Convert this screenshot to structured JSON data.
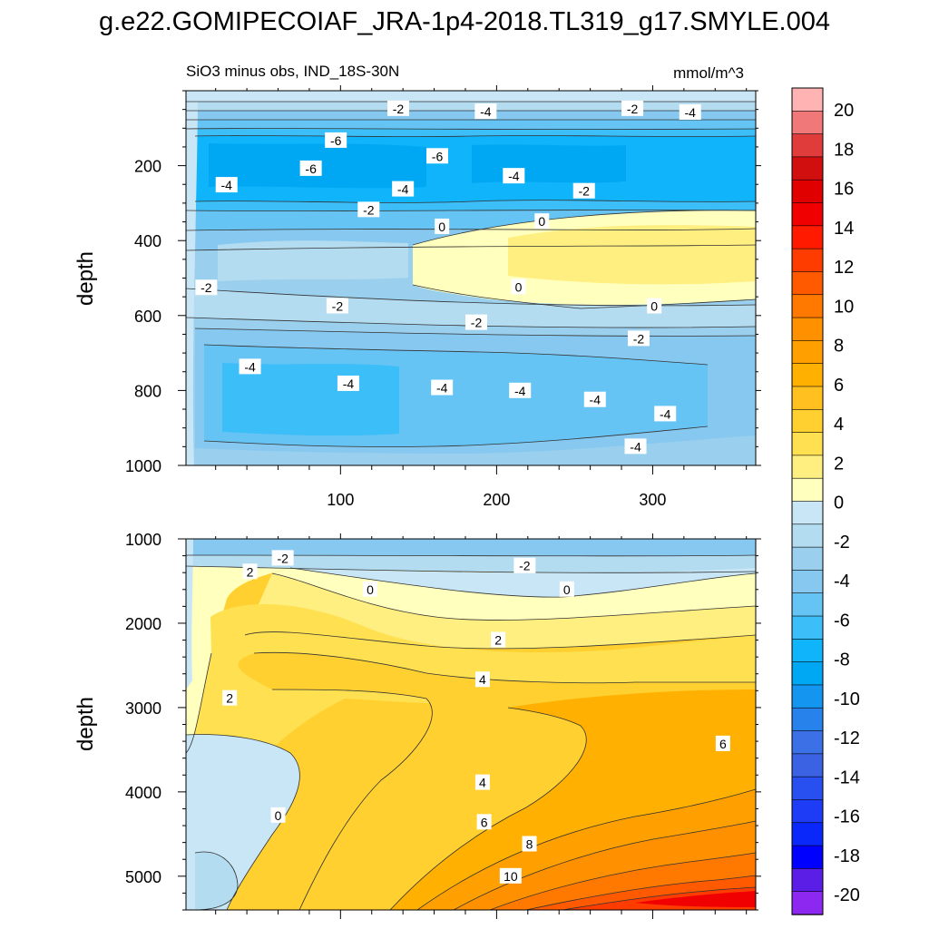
{
  "figure_title": "g.e22.GOMIPECOIAF_JRA-1p4-2018.TL319_g17.SMYLE.004",
  "chart_data": [
    {
      "type": "heatmap",
      "subtype": "filled-contour",
      "title": "SiO3 minus obs, IND_18S-30N",
      "units_label": "mmol/m^3",
      "ylabel": "depth",
      "xlabel": "",
      "xlim": [
        1,
        366
      ],
      "ylim": [
        1000,
        0
      ],
      "xticks": [
        100,
        200,
        300
      ],
      "yticks": [
        200,
        400,
        600,
        800,
        1000
      ],
      "contour_labels": [
        {
          "text": "-2",
          "x": 137,
          "y": 48
        },
        {
          "text": "-4",
          "x": 193,
          "y": 56
        },
        {
          "text": "-2",
          "x": 287,
          "y": 48
        },
        {
          "text": "-4",
          "x": 324,
          "y": 58
        },
        {
          "text": "-6",
          "x": 97,
          "y": 133
        },
        {
          "text": "-6",
          "x": 162,
          "y": 175
        },
        {
          "text": "-6",
          "x": 81,
          "y": 208
        },
        {
          "text": "-4",
          "x": 27,
          "y": 252
        },
        {
          "text": "-4",
          "x": 140,
          "y": 263
        },
        {
          "text": "-4",
          "x": 211,
          "y": 228
        },
        {
          "text": "-2",
          "x": 256,
          "y": 268
        },
        {
          "text": "-2",
          "x": 118,
          "y": 318
        },
        {
          "text": "0",
          "x": 165,
          "y": 363
        },
        {
          "text": "0",
          "x": 229,
          "y": 349
        },
        {
          "text": "-2",
          "x": 14,
          "y": 526
        },
        {
          "text": "0",
          "x": 214,
          "y": 524
        },
        {
          "text": "-2",
          "x": 98,
          "y": 575
        },
        {
          "text": "-2",
          "x": 187,
          "y": 619
        },
        {
          "text": "0",
          "x": 301,
          "y": 575
        },
        {
          "text": "-2",
          "x": 291,
          "y": 662
        },
        {
          "text": "-4",
          "x": 42,
          "y": 737
        },
        {
          "text": "-4",
          "x": 105,
          "y": 782
        },
        {
          "text": "-4",
          "x": 165,
          "y": 793
        },
        {
          "text": "-4",
          "x": 215,
          "y": 801
        },
        {
          "text": "-4",
          "x": 263,
          "y": 825
        },
        {
          "text": "-4",
          "x": 308,
          "y": 863
        },
        {
          "text": "-4",
          "x": 289,
          "y": 950
        }
      ]
    },
    {
      "type": "heatmap",
      "subtype": "filled-contour",
      "title": "",
      "ylabel": "depth",
      "xlabel": "",
      "xlim": [
        1,
        366
      ],
      "ylim": [
        5400,
        1000
      ],
      "xticks": [
        100,
        200,
        300
      ],
      "yticks": [
        1000,
        2000,
        3000,
        4000,
        5000
      ],
      "contour_labels": [
        {
          "text": "-2",
          "x": 63,
          "y": 1230
        },
        {
          "text": "2",
          "x": 42,
          "y": 1390
        },
        {
          "text": "-2",
          "x": 218,
          "y": 1320
        },
        {
          "text": "0",
          "x": 119,
          "y": 1600
        },
        {
          "text": "0",
          "x": 245,
          "y": 1600
        },
        {
          "text": "2",
          "x": 201,
          "y": 2200
        },
        {
          "text": "4",
          "x": 191,
          "y": 2670
        },
        {
          "text": "2",
          "x": 29,
          "y": 2890
        },
        {
          "text": "6",
          "x": 345,
          "y": 3430
        },
        {
          "text": "4",
          "x": 191,
          "y": 3890
        },
        {
          "text": "0",
          "x": 60,
          "y": 4280
        },
        {
          "text": "6",
          "x": 192,
          "y": 4360
        },
        {
          "text": "8",
          "x": 221,
          "y": 4620
        },
        {
          "text": "10",
          "x": 209,
          "y": 5000
        }
      ]
    }
  ],
  "colorbar": {
    "labels": [
      "20",
      "18",
      "16",
      "14",
      "12",
      "10",
      "8",
      "6",
      "4",
      "2",
      "0",
      "-2",
      "-4",
      "-6",
      "-8",
      "-10",
      "-12",
      "-14",
      "-16",
      "-18",
      "-20"
    ],
    "colors": [
      "#ffb3b3",
      "#f07878",
      "#e03c3c",
      "#d20f0f",
      "#e00000",
      "#f00000",
      "#ff1a00",
      "#ff3c00",
      "#ff5a00",
      "#ff7800",
      "#ff9000",
      "#ffa000",
      "#ffb000",
      "#ffc020",
      "#ffd030",
      "#ffe050",
      "#ffee80",
      "#ffffbe",
      "#c8e6f6",
      "#b4dcf0",
      "#9ad0ee",
      "#86c8f0",
      "#66c4f4",
      "#3cbef8",
      "#10b4fa",
      "#00a8f4",
      "#1496f0",
      "#2882ec",
      "#3c70e6",
      "#3c62e4",
      "#2850f0",
      "#1e3cf6",
      "#0a28fa",
      "#0000ff",
      "#5a1ee6",
      "#8c28f0"
    ]
  }
}
